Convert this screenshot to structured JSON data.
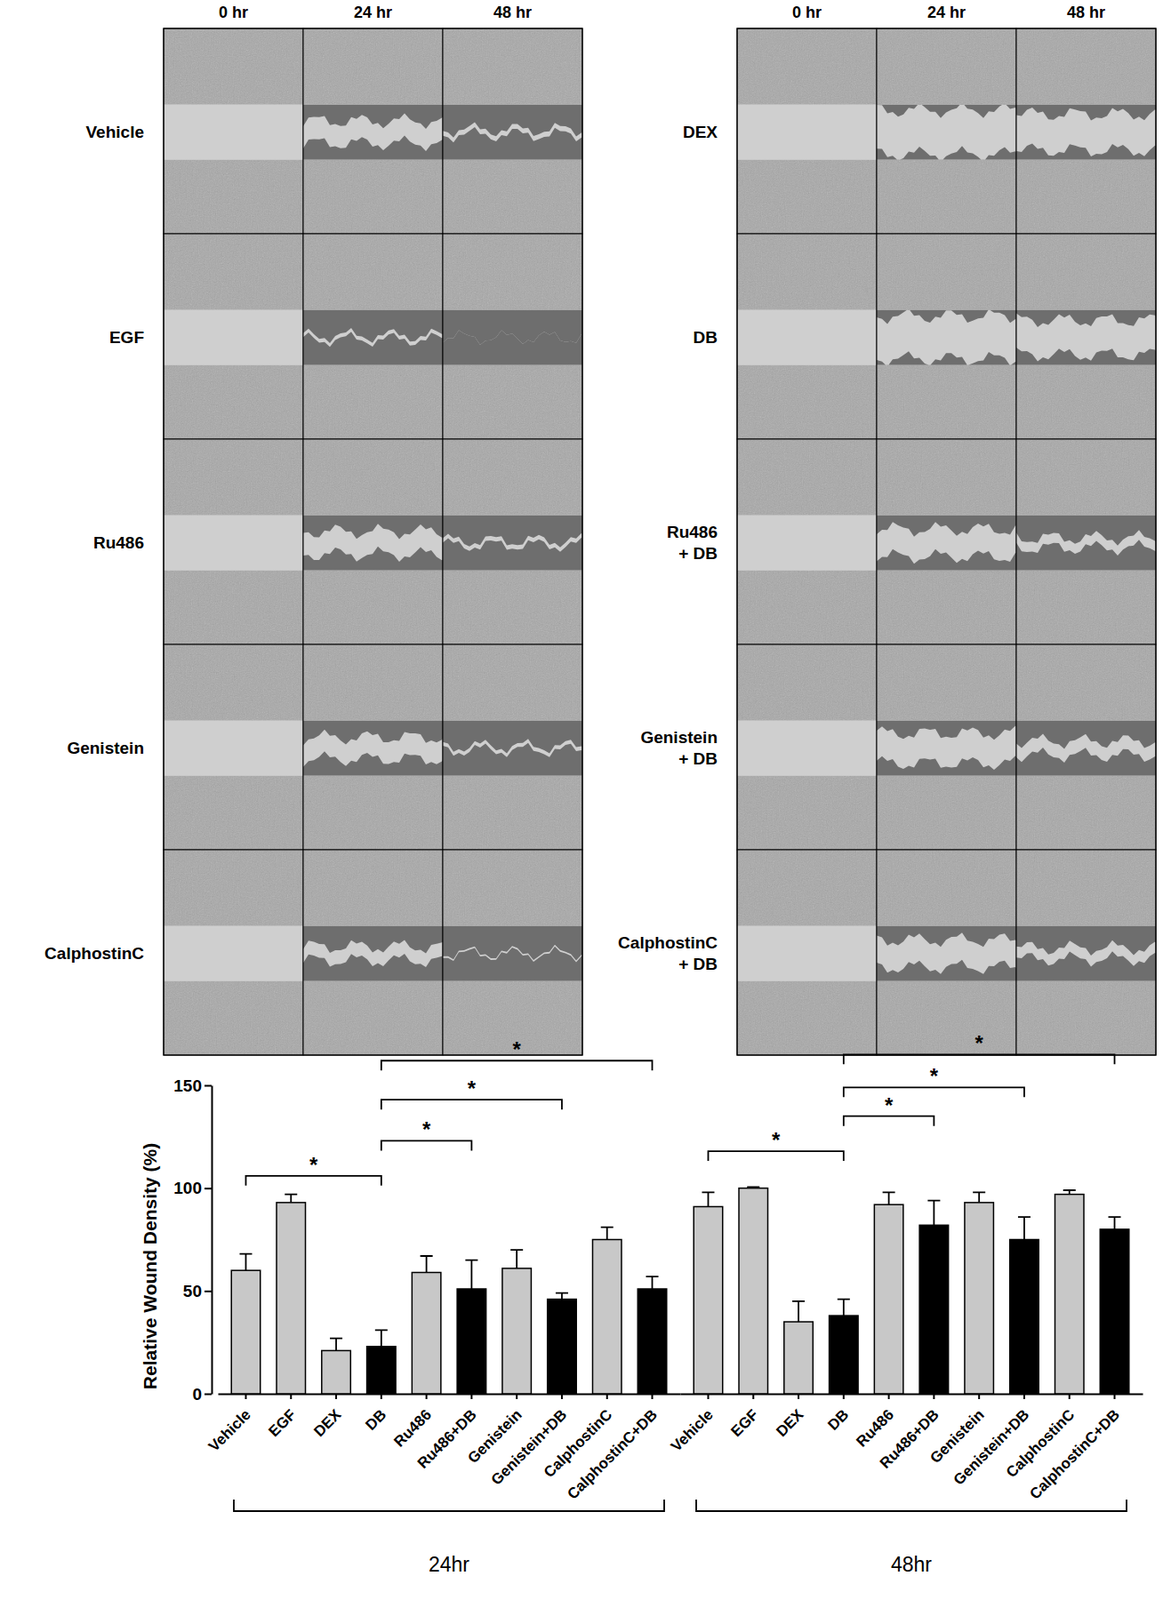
{
  "panels": {
    "columns": [
      "0 hr",
      "24 hr",
      "48 hr"
    ],
    "left": [
      [
        "Vehicle"
      ],
      [
        "EGF"
      ],
      [
        "Ru486"
      ],
      [
        "Genistein"
      ],
      [
        "CalphostinC"
      ]
    ],
    "right": [
      [
        "DEX"
      ],
      [
        "DB"
      ],
      [
        "Ru486",
        "+ DB"
      ],
      [
        "Genistein",
        "+ DB"
      ],
      [
        "CalphostinC",
        "+ DB"
      ]
    ]
  },
  "chart_data": {
    "type": "bar",
    "ylabel": "Relative Wound Density (%)",
    "categories": [
      "Vehicle",
      "EGF",
      "DEX",
      "DB",
      "Ru486",
      "Ru486+DB",
      "Genistein",
      "Genistein+DB",
      "CalphostinC",
      "CalphostinC+DB"
    ],
    "series": [
      {
        "name": "24hr",
        "values": [
          60,
          93,
          21,
          23,
          59,
          51,
          61,
          46,
          75,
          51
        ],
        "errors": [
          8,
          4,
          6,
          8,
          8,
          14,
          9,
          3,
          6,
          6
        ],
        "colors": [
          "#c8c8c8",
          "#c8c8c8",
          "#c8c8c8",
          "#000000",
          "#c8c8c8",
          "#000000",
          "#c8c8c8",
          "#000000",
          "#c8c8c8",
          "#000000"
        ]
      },
      {
        "name": "48hr",
        "values": [
          91,
          100,
          35,
          38,
          92,
          82,
          93,
          75,
          97,
          80
        ],
        "errors": [
          7,
          0.5,
          10,
          8,
          6,
          12,
          5,
          11,
          2,
          6
        ],
        "colors": [
          "#c8c8c8",
          "#c8c8c8",
          "#c8c8c8",
          "#000000",
          "#c8c8c8",
          "#000000",
          "#c8c8c8",
          "#000000",
          "#c8c8c8",
          "#000000"
        ]
      }
    ],
    "ylim": [
      0,
      150
    ],
    "yticks": [
      0,
      50,
      100,
      150
    ],
    "annotations": [
      {
        "series": "24hr",
        "from": "Vehicle",
        "to": "DB",
        "y": 106,
        "text": "*"
      },
      {
        "series": "24hr",
        "from": "DB",
        "to": "Ru486+DB",
        "y": 123,
        "text": "*"
      },
      {
        "series": "24hr",
        "from": "DB",
        "to": "Genistein+DB",
        "y": 143,
        "text": "*"
      },
      {
        "series": "24hr",
        "from": "DB",
        "to": "CalphostinC+DB",
        "y": 162,
        "text": "*"
      },
      {
        "series": "48hr",
        "from": "Vehicle",
        "to": "DB",
        "y": 118,
        "text": "*"
      },
      {
        "series": "48hr",
        "from": "DB",
        "to": "Ru486+DB",
        "y": 135,
        "text": "*"
      },
      {
        "series": "48hr",
        "from": "DB",
        "to": "Genistein+DB",
        "y": 149,
        "text": "*"
      },
      {
        "series": "48hr",
        "from": "DB",
        "to": "CalphostinC+DB",
        "y": 165,
        "text": "*"
      }
    ]
  }
}
